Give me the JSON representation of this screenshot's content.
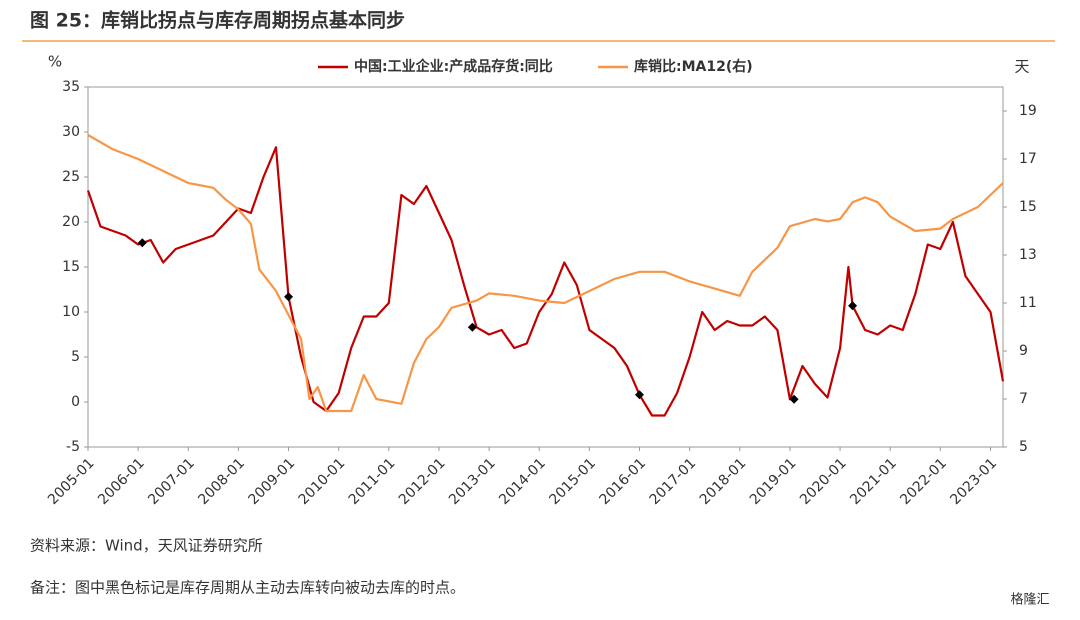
{
  "chart_data": {
    "type": "line",
    "title": "图 25：库销比拐点与库存周期拐点基本同步",
    "y_unit": "%",
    "y2_unit": "天",
    "source": "资料来源：Wind，天风证券研究所",
    "note": "备注：图中黑色标记是库存周期从主动去库转向被动去库的时点。",
    "watermark": "格隆汇",
    "xlim": [
      "2005-01",
      "2023-04"
    ],
    "xticks": [
      "2005-01",
      "2006-01",
      "2007-01",
      "2008-01",
      "2009-01",
      "2010-01",
      "2011-01",
      "2012-01",
      "2013-01",
      "2014-01",
      "2015-01",
      "2016-01",
      "2017-01",
      "2018-01",
      "2019-01",
      "2020-01",
      "2021-01",
      "2022-01",
      "2023-01"
    ],
    "ylim": [
      -5,
      35
    ],
    "yticks": [
      -5,
      0,
      5,
      10,
      15,
      20,
      25,
      30,
      35
    ],
    "y2lim": [
      5,
      20
    ],
    "y2ticks": [
      5,
      7,
      9,
      11,
      13,
      15,
      17,
      19
    ],
    "series": [
      {
        "name": "中国:工业企业:产成品存货:同比",
        "color": "#c00000",
        "axis": "y",
        "x": [
          "2005-01",
          "2005-04",
          "2005-07",
          "2005-10",
          "2006-01",
          "2006-04",
          "2006-07",
          "2006-10",
          "2007-01",
          "2007-04",
          "2007-07",
          "2007-10",
          "2008-01",
          "2008-04",
          "2008-07",
          "2008-10",
          "2009-01",
          "2009-04",
          "2009-07",
          "2009-10",
          "2010-01",
          "2010-04",
          "2010-07",
          "2010-10",
          "2011-01",
          "2011-04",
          "2011-07",
          "2011-10",
          "2012-01",
          "2012-04",
          "2012-07",
          "2012-10",
          "2013-01",
          "2013-04",
          "2013-07",
          "2013-10",
          "2014-01",
          "2014-04",
          "2014-07",
          "2014-10",
          "2015-01",
          "2015-04",
          "2015-07",
          "2015-10",
          "2016-01",
          "2016-04",
          "2016-07",
          "2016-10",
          "2017-01",
          "2017-04",
          "2017-07",
          "2017-10",
          "2018-01",
          "2018-04",
          "2018-07",
          "2018-10",
          "2019-01",
          "2019-04",
          "2019-07",
          "2019-10",
          "2020-01",
          "2020-03",
          "2020-04",
          "2020-07",
          "2020-10",
          "2021-01",
          "2021-04",
          "2021-07",
          "2021-10",
          "2022-01",
          "2022-04",
          "2022-07",
          "2022-10",
          "2023-01",
          "2023-04"
        ],
        "values": [
          23.5,
          19.5,
          19,
          18.5,
          17.5,
          18,
          15.5,
          17,
          17.5,
          18,
          18.5,
          20,
          21.5,
          21,
          25,
          28.3,
          11.7,
          5,
          0,
          -1,
          1,
          6,
          9.5,
          9.5,
          11,
          23,
          22,
          24,
          21,
          18,
          13,
          8.3,
          7.5,
          8,
          6,
          6.5,
          10,
          12,
          15.5,
          13,
          8,
          7,
          6,
          4,
          0.8,
          -1.5,
          -1.5,
          1,
          5,
          10,
          8,
          9,
          8.5,
          8.5,
          9.5,
          8,
          0.3,
          4,
          2,
          0.5,
          6,
          15,
          10.7,
          8,
          7.5,
          8.5,
          8,
          12,
          17.5,
          17,
          20,
          14,
          12,
          10,
          2.3
        ]
      },
      {
        "name": "库销比:MA12(右)",
        "color": "#f79646",
        "axis": "y2",
        "x": [
          "2005-01",
          "2005-07",
          "2006-01",
          "2006-07",
          "2007-01",
          "2007-07",
          "2007-10",
          "2008-01",
          "2008-04",
          "2008-06",
          "2008-10",
          "2009-01",
          "2009-04",
          "2009-06",
          "2009-08",
          "2009-10",
          "2010-04",
          "2010-07",
          "2010-10",
          "2011-04",
          "2011-07",
          "2011-10",
          "2012-01",
          "2012-04",
          "2012-10",
          "2013-01",
          "2013-07",
          "2014-01",
          "2014-07",
          "2015-01",
          "2015-07",
          "2016-01",
          "2016-07",
          "2017-01",
          "2017-07",
          "2018-01",
          "2018-04",
          "2018-10",
          "2019-01",
          "2019-07",
          "2019-10",
          "2020-01",
          "2020-04",
          "2020-07",
          "2020-10",
          "2021-01",
          "2021-07",
          "2022-01",
          "2022-04",
          "2022-10",
          "2023-04"
        ],
        "values": [
          18,
          17.4,
          17,
          16.5,
          16,
          15.8,
          15.3,
          14.9,
          14.3,
          12.4,
          11.5,
          10.5,
          9.5,
          7,
          7.5,
          6.5,
          6.5,
          8,
          7,
          6.8,
          8.5,
          9.5,
          10,
          10.8,
          11.1,
          11.4,
          11.3,
          11.1,
          11,
          11.5,
          12,
          12.3,
          12.3,
          11.9,
          11.6,
          11.3,
          12.3,
          13.3,
          14.2,
          14.5,
          14.4,
          14.5,
          15.2,
          15.4,
          15.2,
          14.6,
          14,
          14.1,
          14.5,
          15,
          16
        ]
      }
    ],
    "markers": {
      "color": "#000000",
      "x": [
        "2006-02",
        "2009-01",
        "2012-09",
        "2016-01",
        "2019-02",
        "2020-04"
      ],
      "values": [
        17.7,
        11.7,
        8.3,
        0.8,
        0.3,
        10.7
      ]
    }
  }
}
